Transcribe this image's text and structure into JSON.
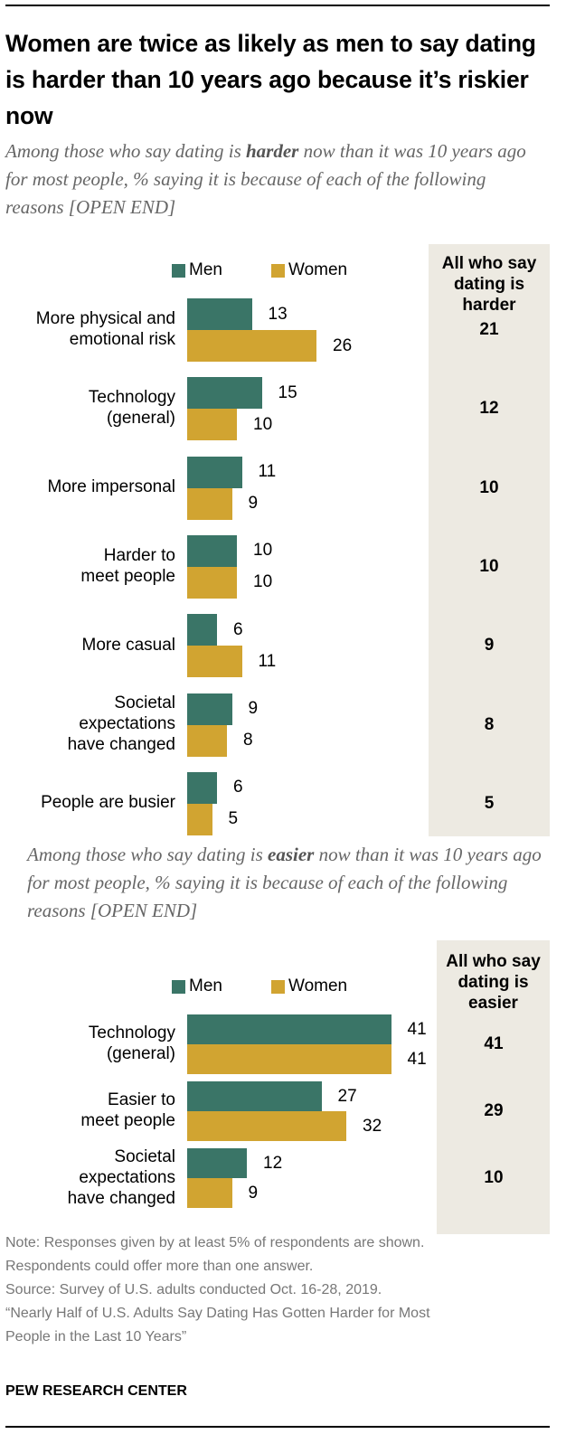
{
  "title": "Women are twice as likely as men to say dating is harder than 10 years ago because it’s riskier now",
  "colors": {
    "men": "#3a7567",
    "women": "#d1a431",
    "shade": "#edeae2"
  },
  "chart_data": [
    {
      "type": "bar",
      "orientation": "horizontal",
      "subtitle_pre": "Among those who say dating is ",
      "subtitle_em": "harder",
      "subtitle_post": " now than it was 10 years ago for most people, % saying it is because of each of the following reasons [OPEN END]",
      "legend": [
        "Men",
        "Women"
      ],
      "column_header": [
        "All who say",
        "dating is",
        "harder"
      ],
      "categories": [
        [
          "More physical and",
          "emotional risk"
        ],
        [
          "Technology",
          "(general)"
        ],
        [
          "More impersonal"
        ],
        [
          "Harder to",
          "meet people"
        ],
        [
          "More casual"
        ],
        [
          "Societal",
          "expectations",
          "have changed"
        ],
        [
          "People are busier"
        ]
      ],
      "series": [
        {
          "name": "Men",
          "values": [
            13,
            15,
            11,
            10,
            6,
            9,
            6
          ]
        },
        {
          "name": "Women",
          "values": [
            26,
            10,
            9,
            10,
            11,
            8,
            5
          ]
        }
      ],
      "all": [
        21,
        12,
        10,
        10,
        9,
        8,
        5
      ]
    },
    {
      "type": "bar",
      "orientation": "horizontal",
      "subtitle_pre": "Among those who say dating is ",
      "subtitle_em": "easier",
      "subtitle_post": " now than it was 10 years ago for most people, % saying it is because of each of the following reasons [OPEN END]",
      "legend": [
        "Men",
        "Women"
      ],
      "column_header": [
        "All who say",
        "dating is",
        "easier"
      ],
      "categories": [
        [
          "Technology",
          "(general)"
        ],
        [
          "Easier to",
          "meet people"
        ],
        [
          "Societal",
          "expectations",
          "have changed"
        ]
      ],
      "series": [
        {
          "name": "Men",
          "values": [
            41,
            27,
            12
          ]
        },
        {
          "name": "Women",
          "values": [
            41,
            32,
            9
          ]
        }
      ],
      "all": [
        41,
        29,
        10
      ]
    }
  ],
  "notes": [
    "Note: Responses given by at least 5% of respondents are shown.",
    "Respondents could offer more than one answer.",
    "Source: Survey of U.S. adults conducted Oct. 16-28, 2019.",
    "“Nearly Half of U.S. Adults Say Dating Has Gotten Harder for Most",
    "People in the Last 10 Years”"
  ],
  "brand": "PEW RESEARCH CENTER"
}
